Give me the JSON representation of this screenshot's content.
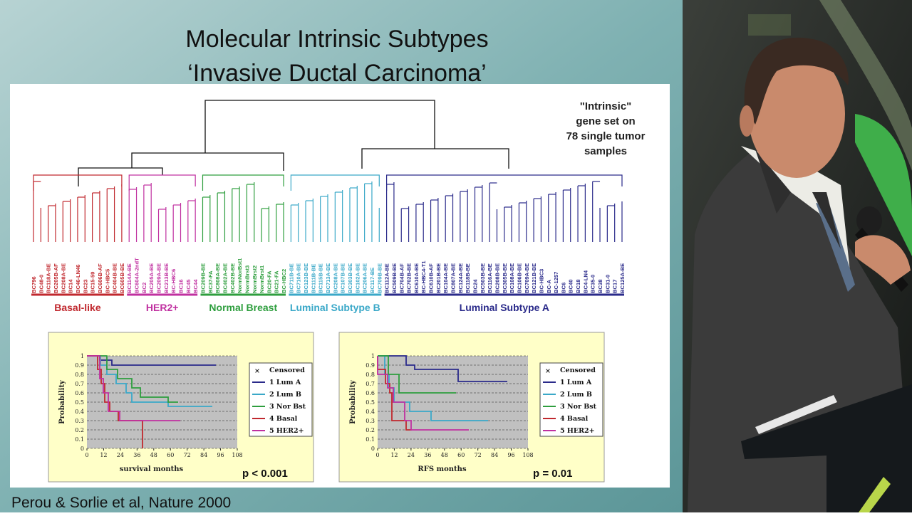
{
  "slide": {
    "title_lines": [
      "Molecular Intrinsic Subtypes",
      "‘Invasive Ductal Carcinoma’"
    ],
    "citation": "Perou & Sorlie et al, Nature 2000"
  },
  "figure": {
    "annotation_lines": [
      "\"Intrinsic\"",
      "gene set on",
      "78 single tumor",
      "samples"
    ],
    "clusters": [
      {
        "name": "Basal-like",
        "color": "#c0282e",
        "samples": [
          "BC796",
          "BC48-0",
          "BC118A-BE",
          "BC205B-AF",
          "BC208A-BE",
          "BC14",
          "BC46-LN46",
          "BC23",
          "BC15-59",
          "BC606B-AF",
          "BC-HBC5",
          "BC404B-BE",
          "BC605B-BE"
        ]
      },
      {
        "name": "HER2+",
        "color": "#c030a0",
        "samples": [
          "BC114A-BE",
          "BC604A-2ndT",
          "BC2",
          "BC205A-BE",
          "BC209A-BE",
          "BC213B-BE",
          "BC-HBC6",
          "BC16",
          "BC45",
          "BC44"
        ]
      },
      {
        "name": "Normal Breast",
        "color": "#2e9e3e",
        "samples": [
          "BC209B-BE",
          "BC37-FA",
          "BC808A-BE",
          "BC402A-BE",
          "BC402B-BE",
          "NormNorBst1",
          "NormBrst3",
          "NormBrst2",
          "NormBrst1",
          "BC20-FA",
          "BC21-FA",
          "BC-HBC2"
        ]
      },
      {
        "name": "Luminal Subtype B",
        "color": "#3aa8c8",
        "samples": [
          "BC711B-BE",
          "BC710A-BE",
          "BC123B-BE",
          "BC111B-BE",
          "BC115B-BE",
          "BC713A-BE",
          "BC208A-BE",
          "BC107B-BE",
          "BC303B-BE",
          "BC102A-BE",
          "BC206A-BE",
          "BC117-BE",
          "BC709B-BE"
        ]
      },
      {
        "name": "Luminal Subtype A",
        "color": "#2a2a8a",
        "samples": [
          "BC112A-BE",
          "BC509B-BE",
          "BC704B-AF",
          "BC702B-BE",
          "BC610A-BE",
          "BC-HBC4-T1",
          "BC610B-AF",
          "BC201B-BE",
          "BC104A-BE",
          "BC807A-BE",
          "BC124A-BE",
          "BC118B-BE",
          "BC24",
          "BC503B-BE",
          "BC116A-BE",
          "BC208B-BE",
          "BC305B-BE",
          "BC108A-BE",
          "BC106B-BE",
          "BC709A-BE",
          "BC121B-BE",
          "BC-HBC3",
          "BC-A",
          "BC-1257",
          "BC6",
          "BC40",
          "BC18",
          "BC4-LN4",
          "BC35-0",
          "BC38",
          "BC31-0",
          "BC17",
          "BC125A-BE"
        ]
      }
    ],
    "survival_plots": [
      {
        "y_label": "Probability",
        "x_label": "survival months",
        "p_value": "p < 0.001",
        "xticks": [
          0,
          12,
          24,
          36,
          48,
          60,
          72,
          84,
          96,
          108
        ],
        "yticks": [
          0,
          0.1,
          0.2,
          0.3,
          0.4,
          0.5,
          0.6,
          0.7,
          0.8,
          0.9,
          1
        ],
        "legend": {
          "censored": "Censored",
          "entries": [
            {
              "label": "1 Lum A",
              "color": "#2a2a8a"
            },
            {
              "label": "2 Lum B",
              "color": "#3aa8c8"
            },
            {
              "label": "3 Nor Bst",
              "color": "#2e9e3e"
            },
            {
              "label": "4 Basal",
              "color": "#c0282e"
            },
            {
              "label": "5 HER2+",
              "color": "#c030a0"
            }
          ]
        }
      },
      {
        "y_label": "Probability",
        "x_label": "RFS months",
        "p_value": "p = 0.01",
        "xticks": [
          0,
          12,
          24,
          36,
          48,
          60,
          72,
          84,
          96,
          108
        ],
        "yticks": [
          0,
          0.1,
          0.2,
          0.3,
          0.4,
          0.5,
          0.6,
          0.7,
          0.8,
          0.9,
          1
        ],
        "legend": {
          "censored": "Censored",
          "entries": [
            {
              "label": "1 Lum A",
              "color": "#2a2a8a"
            },
            {
              "label": "2 Lum B",
              "color": "#3aa8c8"
            },
            {
              "label": "3 Nor Bst",
              "color": "#2e9e3e"
            },
            {
              "label": "4 Basal",
              "color": "#c0282e"
            },
            {
              "label": "5 HER2+",
              "color": "#c030a0"
            }
          ]
        }
      }
    ]
  }
}
